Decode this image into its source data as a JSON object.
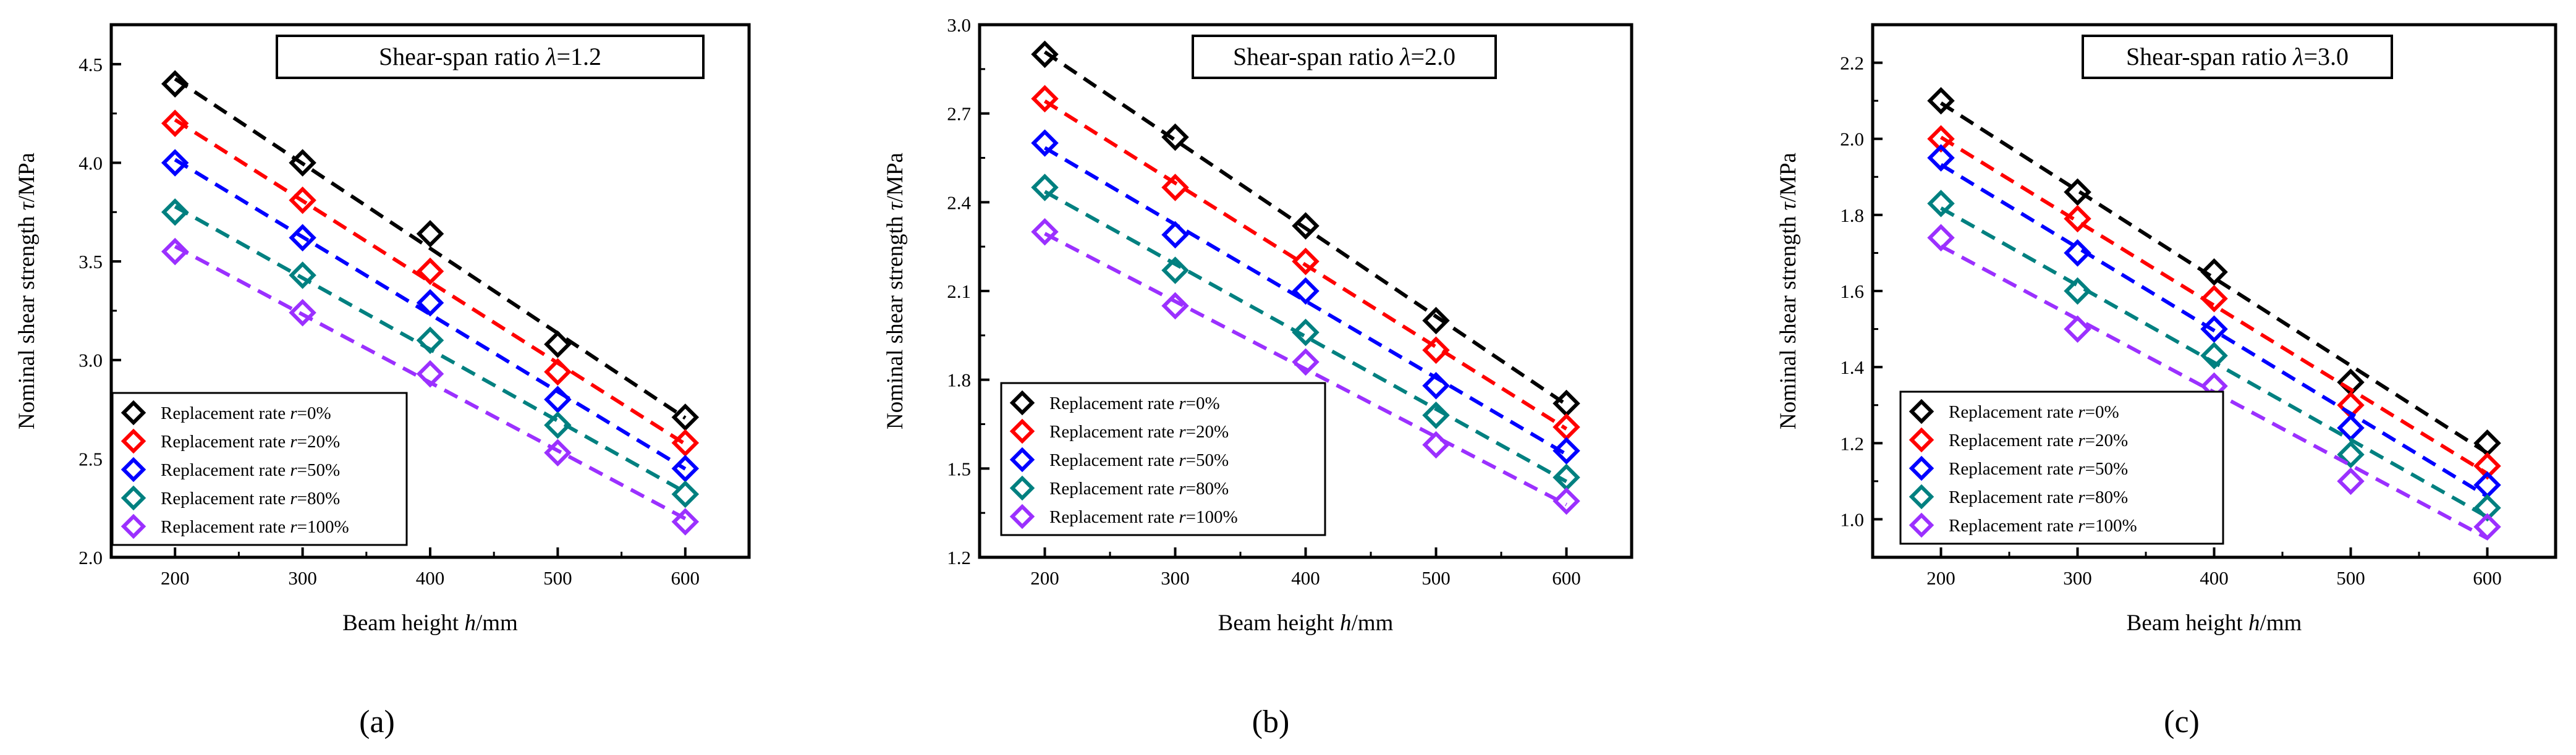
{
  "figure": {
    "colors": {
      "r0": "#000000",
      "r20": "#ff0000",
      "r50": "#0000ff",
      "r80": "#008080",
      "r100": "#9b30ff"
    }
  },
  "chart_data": [
    {
      "type": "scatter",
      "panel_label": "(a)",
      "title_prefix": "Shear-span ratio ",
      "title_symbol": "λ",
      "title_suffix": "=1.2",
      "xlabel_prefix": "Beam height ",
      "xlabel_symbol": "h",
      "xlabel_suffix": "/mm",
      "ylabel_prefix": "Nominal shear strength ",
      "ylabel_symbol": "τ",
      "ylabel_suffix": "/MPa",
      "xlim": [
        150,
        650
      ],
      "ylim": [
        2.0,
        4.7
      ],
      "xticks": [
        200,
        300,
        400,
        500,
        600
      ],
      "yticks": [
        2.0,
        2.5,
        3.0,
        3.5,
        4.0,
        4.5
      ],
      "ytick_labels": [
        "2.0",
        "2.5",
        "3.0",
        "3.5",
        "4.0",
        "4.5"
      ],
      "x": [
        200,
        300,
        400,
        500,
        600
      ],
      "legend_position": "bottom-left",
      "fit_lines": "dashed",
      "series": [
        {
          "name_prefix": "Replacement rate ",
          "name_symbol": "r",
          "name_suffix": "=0%",
          "color_key": "r0",
          "values": [
            4.4,
            4.0,
            3.64,
            3.08,
            2.71
          ]
        },
        {
          "name_prefix": "Replacement rate ",
          "name_symbol": "r",
          "name_suffix": "=20%",
          "color_key": "r20",
          "values": [
            4.2,
            3.81,
            3.45,
            2.94,
            2.58
          ]
        },
        {
          "name_prefix": "Replacement rate ",
          "name_symbol": "r",
          "name_suffix": "=50%",
          "color_key": "r50",
          "values": [
            4.0,
            3.62,
            3.29,
            2.8,
            2.45
          ]
        },
        {
          "name_prefix": "Replacement rate ",
          "name_symbol": "r",
          "name_suffix": "=80%",
          "color_key": "r80",
          "values": [
            3.75,
            3.43,
            3.1,
            2.67,
            2.32
          ]
        },
        {
          "name_prefix": "Replacement rate ",
          "name_symbol": "r",
          "name_suffix": "=100%",
          "color_key": "r100",
          "values": [
            3.55,
            3.24,
            2.93,
            2.53,
            2.18
          ]
        }
      ]
    },
    {
      "type": "scatter",
      "panel_label": "(b)",
      "title_prefix": "Shear-span ratio ",
      "title_symbol": "λ",
      "title_suffix": "=2.0",
      "xlabel_prefix": "Beam height ",
      "xlabel_symbol": "h",
      "xlabel_suffix": "/mm",
      "ylabel_prefix": "Nominal shear strength ",
      "ylabel_symbol": "τ",
      "ylabel_suffix": "/MPa",
      "xlim": [
        150,
        650
      ],
      "ylim": [
        1.2,
        3.0
      ],
      "xticks": [
        200,
        300,
        400,
        500,
        600
      ],
      "yticks": [
        1.2,
        1.5,
        1.8,
        2.1,
        2.4,
        2.7,
        3.0
      ],
      "ytick_labels": [
        "1.2",
        "1.5",
        "1.8",
        "2.1",
        "2.4",
        "2.7",
        "3.0"
      ],
      "x": [
        200,
        300,
        400,
        500,
        600
      ],
      "legend_position": "bottom-left",
      "fit_lines": "dashed",
      "series": [
        {
          "name_prefix": "Replacement rate ",
          "name_symbol": "r",
          "name_suffix": "=0%",
          "color_key": "r0",
          "values": [
            2.9,
            2.62,
            2.32,
            2.0,
            1.72
          ]
        },
        {
          "name_prefix": "Replacement rate ",
          "name_symbol": "r",
          "name_suffix": "=20%",
          "color_key": "r20",
          "values": [
            2.75,
            2.45,
            2.2,
            1.9,
            1.64
          ]
        },
        {
          "name_prefix": "Replacement rate ",
          "name_symbol": "r",
          "name_suffix": "=50%",
          "color_key": "r50",
          "values": [
            2.6,
            2.29,
            2.1,
            1.78,
            1.56
          ]
        },
        {
          "name_prefix": "Replacement rate ",
          "name_symbol": "r",
          "name_suffix": "=80%",
          "color_key": "r80",
          "values": [
            2.45,
            2.17,
            1.96,
            1.68,
            1.47
          ]
        },
        {
          "name_prefix": "Replacement rate ",
          "name_symbol": "r",
          "name_suffix": "=100%",
          "color_key": "r100",
          "values": [
            2.3,
            2.05,
            1.86,
            1.58,
            1.39
          ]
        }
      ]
    },
    {
      "type": "scatter",
      "panel_label": "(c)",
      "title_prefix": "Shear-span ratio ",
      "title_symbol": "λ",
      "title_suffix": "=3.0",
      "xlabel_prefix": "Beam height ",
      "xlabel_symbol": "h",
      "xlabel_suffix": "/mm",
      "ylabel_prefix": "Nominal shear strength ",
      "ylabel_symbol": "τ",
      "ylabel_suffix": "/MPa",
      "xlim": [
        150,
        650
      ],
      "ylim": [
        0.9,
        2.3
      ],
      "xticks": [
        200,
        300,
        400,
        500,
        600
      ],
      "yticks": [
        1.0,
        1.2,
        1.4,
        1.6,
        1.8,
        2.0,
        2.2
      ],
      "ytick_labels": [
        "1.0",
        "1.2",
        "1.4",
        "1.6",
        "1.8",
        "2.0",
        "2.2"
      ],
      "x": [
        200,
        300,
        400,
        500,
        600
      ],
      "legend_position": "bottom-left",
      "fit_lines": "dashed",
      "series": [
        {
          "name_prefix": "Replacement rate ",
          "name_symbol": "r",
          "name_suffix": "=0%",
          "color_key": "r0",
          "values": [
            2.1,
            1.86,
            1.65,
            1.36,
            1.2
          ]
        },
        {
          "name_prefix": "Replacement rate ",
          "name_symbol": "r",
          "name_suffix": "=20%",
          "color_key": "r20",
          "values": [
            2.0,
            1.79,
            1.58,
            1.3,
            1.14
          ]
        },
        {
          "name_prefix": "Replacement rate ",
          "name_symbol": "r",
          "name_suffix": "=50%",
          "color_key": "r50",
          "values": [
            1.95,
            1.7,
            1.5,
            1.24,
            1.09
          ]
        },
        {
          "name_prefix": "Replacement rate ",
          "name_symbol": "r",
          "name_suffix": "=80%",
          "color_key": "r80",
          "values": [
            1.83,
            1.6,
            1.43,
            1.17,
            1.03
          ]
        },
        {
          "name_prefix": "Replacement rate ",
          "name_symbol": "r",
          "name_suffix": "=100%",
          "color_key": "r100",
          "values": [
            1.74,
            1.5,
            1.35,
            1.1,
            0.98
          ]
        }
      ]
    }
  ]
}
